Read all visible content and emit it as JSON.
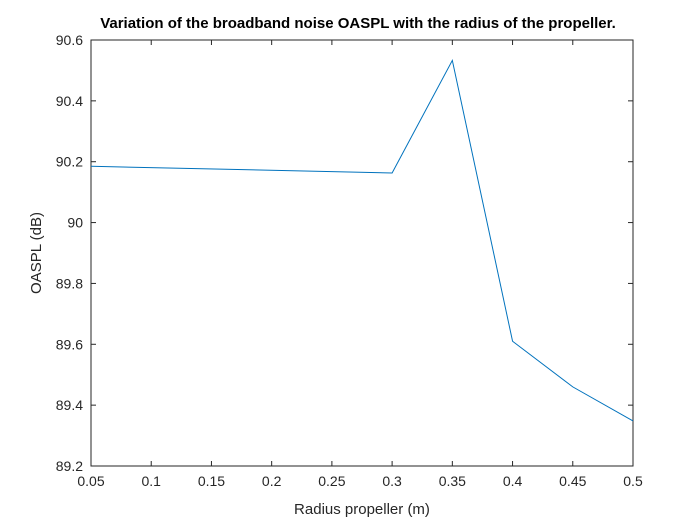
{
  "chart_data": {
    "type": "line",
    "title": "Variation of the broadband noise OASPL with the radius of the propeller.",
    "xlabel": "Radius propeller (m)",
    "ylabel": "OASPL (dB)",
    "xlim": [
      0.05,
      0.5
    ],
    "ylim": [
      89.2,
      90.6
    ],
    "xticks": [
      "0.05",
      "0.1",
      "0.15",
      "0.2",
      "0.25",
      "0.3",
      "0.35",
      "0.4",
      "0.45",
      "0.5"
    ],
    "yticks": [
      "89.2",
      "89.4",
      "89.6",
      "89.8",
      "90",
      "90.2",
      "90.4",
      "90.6"
    ],
    "grid": false,
    "series": [
      {
        "x": [
          0.05,
          0.3,
          0.35,
          0.4,
          0.45,
          0.5
        ],
        "y": [
          90.185,
          90.163,
          90.533,
          89.61,
          89.46,
          89.348
        ],
        "color": "#0072BD"
      }
    ]
  }
}
